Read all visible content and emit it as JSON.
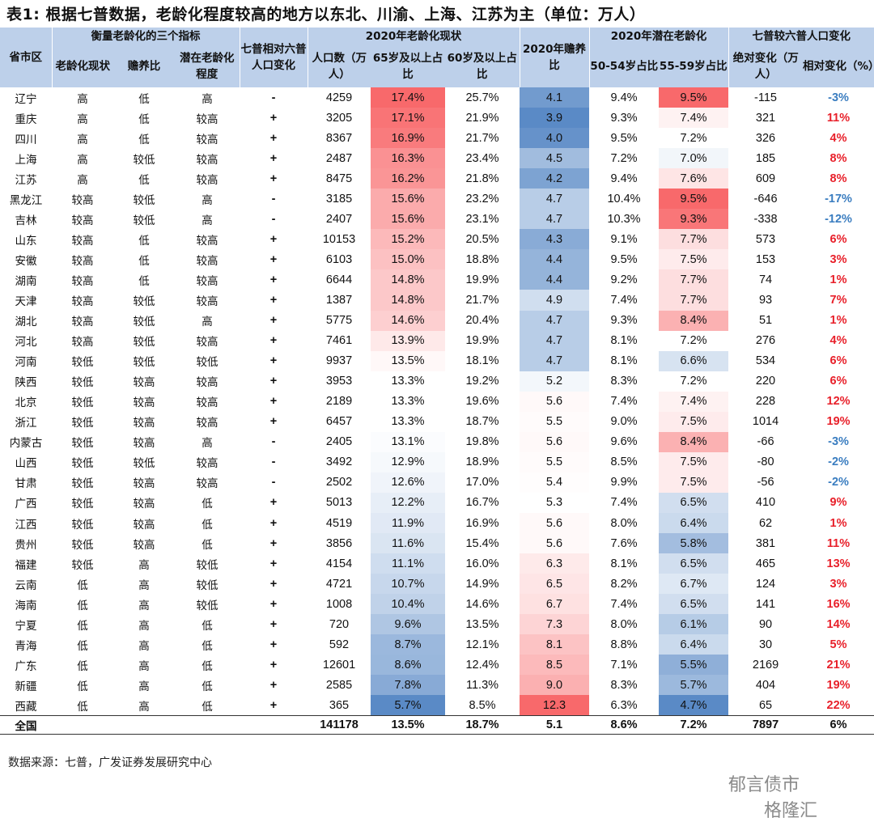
{
  "title": "表1: 根据七普数据，老龄化程度较高的地方以东北、川渝、上海、江苏为主（单位：万人）",
  "headers": {
    "province": "省市区",
    "group_three": "衡量老龄化的三个指标",
    "group_change": "七普相对六普人口变化",
    "group_2020": "2020年老龄化现状",
    "dependency": "2020年赡养比",
    "group_potential": "2020年潜在老龄化",
    "group_vs6": "七普较六普人口变化",
    "sub_status": "老龄化现状",
    "sub_dependency": "赡养比",
    "sub_potential": "潜在老龄化程度",
    "sub_pop": "人口数（万人）",
    "sub_65": "65岁及以上占比",
    "sub_60": "60岁及以上占比",
    "sub_5054": "50-54岁占比",
    "sub_5559": "55-59岁占比",
    "sub_abs": "绝对变化（万人）",
    "sub_rel": "相对变化（%）"
  },
  "rows": [
    {
      "p": "辽宁",
      "s": "高",
      "d": "低",
      "pot": "高",
      "ch": "-",
      "pop": "4259",
      "r65": "17.4%",
      "r60": "25.7%",
      "dep": "4.1",
      "r50": "9.4%",
      "r55": "9.5%",
      "abs": "-115",
      "rel": "-3%"
    },
    {
      "p": "重庆",
      "s": "高",
      "d": "低",
      "pot": "较高",
      "ch": "+",
      "pop": "3205",
      "r65": "17.1%",
      "r60": "21.9%",
      "dep": "3.9",
      "r50": "9.3%",
      "r55": "7.4%",
      "abs": "321",
      "rel": "11%"
    },
    {
      "p": "四川",
      "s": "高",
      "d": "低",
      "pot": "较高",
      "ch": "+",
      "pop": "8367",
      "r65": "16.9%",
      "r60": "21.7%",
      "dep": "4.0",
      "r50": "9.5%",
      "r55": "7.2%",
      "abs": "326",
      "rel": "4%"
    },
    {
      "p": "上海",
      "s": "高",
      "d": "较低",
      "pot": "较高",
      "ch": "+",
      "pop": "2487",
      "r65": "16.3%",
      "r60": "23.4%",
      "dep": "4.5",
      "r50": "7.2%",
      "r55": "7.0%",
      "abs": "185",
      "rel": "8%"
    },
    {
      "p": "江苏",
      "s": "高",
      "d": "低",
      "pot": "较高",
      "ch": "+",
      "pop": "8475",
      "r65": "16.2%",
      "r60": "21.8%",
      "dep": "4.2",
      "r50": "9.4%",
      "r55": "7.6%",
      "abs": "609",
      "rel": "8%"
    },
    {
      "p": "黑龙江",
      "s": "较高",
      "d": "较低",
      "pot": "高",
      "ch": "-",
      "pop": "3185",
      "r65": "15.6%",
      "r60": "23.2%",
      "dep": "4.7",
      "r50": "10.4%",
      "r55": "9.5%",
      "abs": "-646",
      "rel": "-17%"
    },
    {
      "p": "吉林",
      "s": "较高",
      "d": "较低",
      "pot": "高",
      "ch": "-",
      "pop": "2407",
      "r65": "15.6%",
      "r60": "23.1%",
      "dep": "4.7",
      "r50": "10.3%",
      "r55": "9.3%",
      "abs": "-338",
      "rel": "-12%"
    },
    {
      "p": "山东",
      "s": "较高",
      "d": "低",
      "pot": "较高",
      "ch": "+",
      "pop": "10153",
      "r65": "15.2%",
      "r60": "20.5%",
      "dep": "4.3",
      "r50": "9.1%",
      "r55": "7.7%",
      "abs": "573",
      "rel": "6%"
    },
    {
      "p": "安徽",
      "s": "较高",
      "d": "低",
      "pot": "较高",
      "ch": "+",
      "pop": "6103",
      "r65": "15.0%",
      "r60": "18.8%",
      "dep": "4.4",
      "r50": "9.5%",
      "r55": "7.5%",
      "abs": "153",
      "rel": "3%"
    },
    {
      "p": "湖南",
      "s": "较高",
      "d": "低",
      "pot": "较高",
      "ch": "+",
      "pop": "6644",
      "r65": "14.8%",
      "r60": "19.9%",
      "dep": "4.4",
      "r50": "9.2%",
      "r55": "7.7%",
      "abs": "74",
      "rel": "1%"
    },
    {
      "p": "天津",
      "s": "较高",
      "d": "较低",
      "pot": "较高",
      "ch": "+",
      "pop": "1387",
      "r65": "14.8%",
      "r60": "21.7%",
      "dep": "4.9",
      "r50": "7.4%",
      "r55": "7.7%",
      "abs": "93",
      "rel": "7%"
    },
    {
      "p": "湖北",
      "s": "较高",
      "d": "较低",
      "pot": "高",
      "ch": "+",
      "pop": "5775",
      "r65": "14.6%",
      "r60": "20.4%",
      "dep": "4.7",
      "r50": "9.3%",
      "r55": "8.4%",
      "abs": "51",
      "rel": "1%"
    },
    {
      "p": "河北",
      "s": "较高",
      "d": "较低",
      "pot": "较高",
      "ch": "+",
      "pop": "7461",
      "r65": "13.9%",
      "r60": "19.9%",
      "dep": "4.7",
      "r50": "8.1%",
      "r55": "7.2%",
      "abs": "276",
      "rel": "4%"
    },
    {
      "p": "河南",
      "s": "较低",
      "d": "较低",
      "pot": "较低",
      "ch": "+",
      "pop": "9937",
      "r65": "13.5%",
      "r60": "18.1%",
      "dep": "4.7",
      "r50": "8.1%",
      "r55": "6.6%",
      "abs": "534",
      "rel": "6%"
    },
    {
      "p": "陕西",
      "s": "较低",
      "d": "较高",
      "pot": "较高",
      "ch": "+",
      "pop": "3953",
      "r65": "13.3%",
      "r60": "19.2%",
      "dep": "5.2",
      "r50": "8.3%",
      "r55": "7.2%",
      "abs": "220",
      "rel": "6%"
    },
    {
      "p": "北京",
      "s": "较低",
      "d": "较高",
      "pot": "较高",
      "ch": "+",
      "pop": "2189",
      "r65": "13.3%",
      "r60": "19.6%",
      "dep": "5.6",
      "r50": "7.4%",
      "r55": "7.4%",
      "abs": "228",
      "rel": "12%"
    },
    {
      "p": "浙江",
      "s": "较低",
      "d": "较高",
      "pot": "较高",
      "ch": "+",
      "pop": "6457",
      "r65": "13.3%",
      "r60": "18.7%",
      "dep": "5.5",
      "r50": "9.0%",
      "r55": "7.5%",
      "abs": "1014",
      "rel": "19%"
    },
    {
      "p": "内蒙古",
      "s": "较低",
      "d": "较高",
      "pot": "高",
      "ch": "-",
      "pop": "2405",
      "r65": "13.1%",
      "r60": "19.8%",
      "dep": "5.6",
      "r50": "9.6%",
      "r55": "8.4%",
      "abs": "-66",
      "rel": "-3%"
    },
    {
      "p": "山西",
      "s": "较低",
      "d": "较低",
      "pot": "较高",
      "ch": "-",
      "pop": "3492",
      "r65": "12.9%",
      "r60": "18.9%",
      "dep": "5.5",
      "r50": "8.5%",
      "r55": "7.5%",
      "abs": "-80",
      "rel": "-2%"
    },
    {
      "p": "甘肃",
      "s": "较低",
      "d": "较高",
      "pot": "较高",
      "ch": "-",
      "pop": "2502",
      "r65": "12.6%",
      "r60": "17.0%",
      "dep": "5.4",
      "r50": "9.9%",
      "r55": "7.5%",
      "abs": "-56",
      "rel": "-2%"
    },
    {
      "p": "广西",
      "s": "较低",
      "d": "较高",
      "pot": "低",
      "ch": "+",
      "pop": "5013",
      "r65": "12.2%",
      "r60": "16.7%",
      "dep": "5.3",
      "r50": "7.4%",
      "r55": "6.5%",
      "abs": "410",
      "rel": "9%"
    },
    {
      "p": "江西",
      "s": "较低",
      "d": "较高",
      "pot": "低",
      "ch": "+",
      "pop": "4519",
      "r65": "11.9%",
      "r60": "16.9%",
      "dep": "5.6",
      "r50": "8.0%",
      "r55": "6.4%",
      "abs": "62",
      "rel": "1%"
    },
    {
      "p": "贵州",
      "s": "较低",
      "d": "较高",
      "pot": "低",
      "ch": "+",
      "pop": "3856",
      "r65": "11.6%",
      "r60": "15.4%",
      "dep": "5.6",
      "r50": "7.6%",
      "r55": "5.8%",
      "abs": "381",
      "rel": "11%"
    },
    {
      "p": "福建",
      "s": "较低",
      "d": "高",
      "pot": "较低",
      "ch": "+",
      "pop": "4154",
      "r65": "11.1%",
      "r60": "16.0%",
      "dep": "6.3",
      "r50": "8.1%",
      "r55": "6.5%",
      "abs": "465",
      "rel": "13%"
    },
    {
      "p": "云南",
      "s": "低",
      "d": "高",
      "pot": "较低",
      "ch": "+",
      "pop": "4721",
      "r65": "10.7%",
      "r60": "14.9%",
      "dep": "6.5",
      "r50": "8.2%",
      "r55": "6.7%",
      "abs": "124",
      "rel": "3%"
    },
    {
      "p": "海南",
      "s": "低",
      "d": "高",
      "pot": "较低",
      "ch": "+",
      "pop": "1008",
      "r65": "10.4%",
      "r60": "14.6%",
      "dep": "6.7",
      "r50": "7.4%",
      "r55": "6.5%",
      "abs": "141",
      "rel": "16%"
    },
    {
      "p": "宁夏",
      "s": "低",
      "d": "高",
      "pot": "低",
      "ch": "+",
      "pop": "720",
      "r65": "9.6%",
      "r60": "13.5%",
      "dep": "7.3",
      "r50": "8.0%",
      "r55": "6.1%",
      "abs": "90",
      "rel": "14%"
    },
    {
      "p": "青海",
      "s": "低",
      "d": "高",
      "pot": "低",
      "ch": "+",
      "pop": "592",
      "r65": "8.7%",
      "r60": "12.1%",
      "dep": "8.1",
      "r50": "8.8%",
      "r55": "6.4%",
      "abs": "30",
      "rel": "5%"
    },
    {
      "p": "广东",
      "s": "低",
      "d": "高",
      "pot": "低",
      "ch": "+",
      "pop": "12601",
      "r65": "8.6%",
      "r60": "12.4%",
      "dep": "8.5",
      "r50": "7.1%",
      "r55": "5.5%",
      "abs": "2169",
      "rel": "21%"
    },
    {
      "p": "新疆",
      "s": "低",
      "d": "高",
      "pot": "低",
      "ch": "+",
      "pop": "2585",
      "r65": "7.8%",
      "r60": "11.3%",
      "dep": "9.0",
      "r50": "8.3%",
      "r55": "5.7%",
      "abs": "404",
      "rel": "19%"
    },
    {
      "p": "西藏",
      "s": "低",
      "d": "高",
      "pot": "低",
      "ch": "+",
      "pop": "365",
      "r65": "5.7%",
      "r60": "8.5%",
      "dep": "12.3",
      "r50": "6.3%",
      "r55": "4.7%",
      "abs": "65",
      "rel": "22%"
    }
  ],
  "total": {
    "p": "全国",
    "pop": "141178",
    "r65": "13.5%",
    "r60": "18.7%",
    "dep": "5.1",
    "r50": "8.6%",
    "r55": "7.2%",
    "abs": "7897",
    "rel": "6%"
  },
  "colors": {
    "header_bg": "#bdd0ea",
    "red": "#f8696b",
    "blue": "#5a8ac6",
    "white": "#ffffff",
    "positive_text": "#e8202a",
    "negative_text": "#3a7dc0"
  },
  "source": "数据来源：七普，广发证券发展研究中心",
  "watermark": {
    "line1": "郁言债市",
    "line2": "格隆汇"
  }
}
